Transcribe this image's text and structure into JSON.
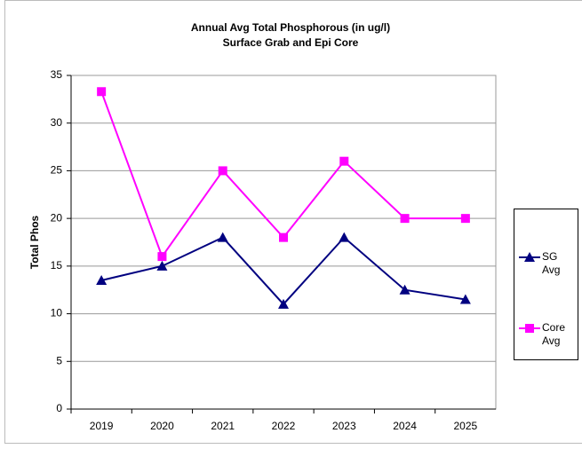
{
  "chart_data": {
    "type": "line",
    "title": "Annual Avg Total Phosphorous (in ug/l)",
    "subtitle": "Surface Grab and Epi Core",
    "y_label": "Total Phos",
    "categories": [
      "2019",
      "2020",
      "2021",
      "2022",
      "2023",
      "2024",
      "2025"
    ],
    "series": [
      {
        "name": "SG Avg",
        "color": "#000080",
        "marker": "triangle",
        "values": [
          13.5,
          15,
          18,
          11,
          18,
          12.5,
          11.5
        ]
      },
      {
        "name": "Core Avg",
        "color": "#ff00ff",
        "marker": "square",
        "values": [
          33.3,
          16,
          25,
          18,
          26,
          20,
          20
        ]
      }
    ],
    "ylim": [
      0,
      35
    ],
    "yticks": [
      0,
      5,
      10,
      15,
      20,
      25,
      30,
      35
    ],
    "grid": true,
    "legend": "right"
  }
}
